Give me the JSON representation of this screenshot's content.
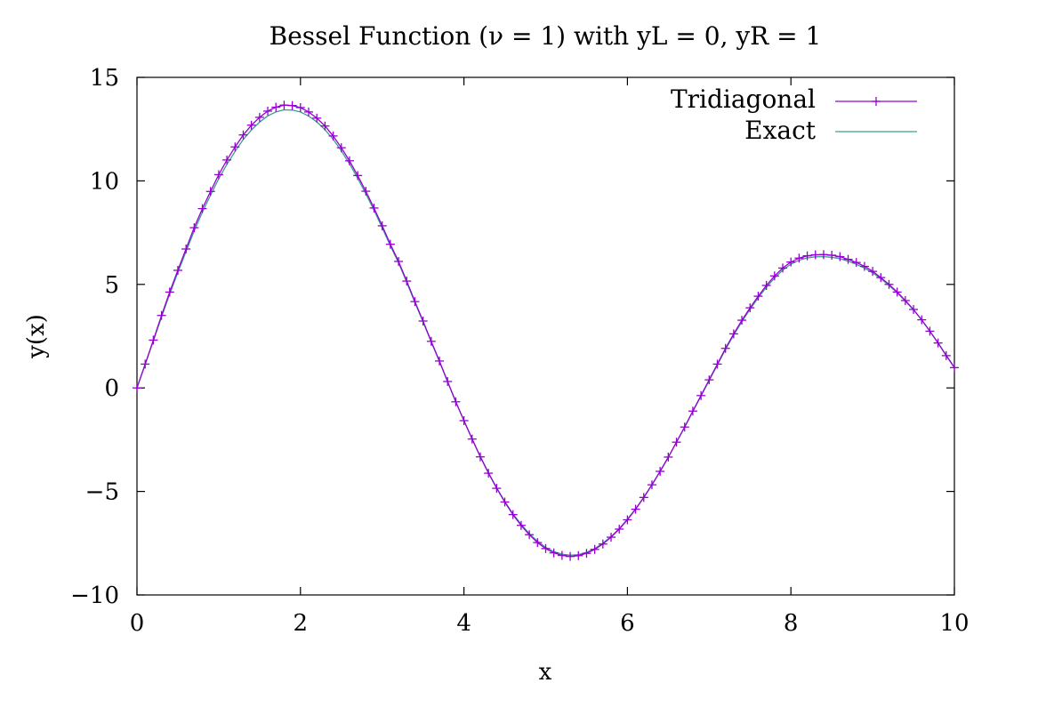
{
  "chart_data": {
    "type": "line",
    "title": "Bessel Function (ν = 1) with yL = 0, yR = 1",
    "xlabel": "x",
    "ylabel": "y(x)",
    "xlim": [
      0,
      10
    ],
    "ylim": [
      -10,
      15
    ],
    "xticks": [
      0,
      2,
      4,
      6,
      8,
      10
    ],
    "yticks": [
      -10,
      -5,
      0,
      5,
      10,
      15
    ],
    "xtick_labels": [
      "0",
      "2",
      "4",
      "6",
      "8",
      "10"
    ],
    "ytick_labels": [
      "−10",
      "−5",
      "0",
      "5",
      "10",
      "15"
    ],
    "grid": false,
    "legend_position": "top-right",
    "series": [
      {
        "name": "Tridiagonal",
        "color": "#9400d3",
        "marker": "plus",
        "x": [
          0,
          0.1,
          0.2,
          0.3,
          0.4,
          0.5,
          0.6,
          0.7,
          0.8,
          0.9,
          1.0,
          1.1,
          1.2,
          1.3,
          1.4,
          1.5,
          1.6,
          1.7,
          1.8,
          1.9,
          2.0,
          2.1,
          2.2,
          2.3,
          2.4,
          2.5,
          2.6,
          2.7,
          2.8,
          2.9,
          3.0,
          3.1,
          3.2,
          3.3,
          3.4,
          3.5,
          3.6,
          3.7,
          3.8,
          3.9,
          4.0,
          4.1,
          4.2,
          4.3,
          4.4,
          4.5,
          4.6,
          4.7,
          4.8,
          4.9,
          5.0,
          5.1,
          5.2,
          5.3,
          5.4,
          5.5,
          5.6,
          5.7,
          5.8,
          5.9,
          6.0,
          6.1,
          6.2,
          6.3,
          6.4,
          6.5,
          6.6,
          6.7,
          6.8,
          6.9,
          7.0,
          7.1,
          7.2,
          7.3,
          7.4,
          7.5,
          7.6,
          7.7,
          7.8,
          7.9,
          8.0,
          8.1,
          8.2,
          8.3,
          8.4,
          8.5,
          8.6,
          8.7,
          8.8,
          8.9,
          9.0,
          9.1,
          9.2,
          9.3,
          9.4,
          9.5,
          9.6,
          9.7,
          9.8,
          9.9,
          10.0
        ],
        "y": [
          0.0,
          1.15,
          2.31,
          3.5,
          4.63,
          5.68,
          6.71,
          7.74,
          8.66,
          9.49,
          10.3,
          11.01,
          11.64,
          12.22,
          12.69,
          13.07,
          13.37,
          13.56,
          13.66,
          13.64,
          13.54,
          13.33,
          13.03,
          12.65,
          12.17,
          11.6,
          10.97,
          10.26,
          9.5,
          8.69,
          7.83,
          6.94,
          6.11,
          5.16,
          4.17,
          3.23,
          2.25,
          1.3,
          0.31,
          -0.67,
          -1.58,
          -2.47,
          -3.33,
          -4.12,
          -4.85,
          -5.51,
          -6.12,
          -6.64,
          -7.09,
          -7.47,
          -7.76,
          -7.97,
          -8.09,
          -8.14,
          -8.1,
          -7.99,
          -7.8,
          -7.54,
          -7.21,
          -6.82,
          -6.37,
          -5.86,
          -5.29,
          -4.68,
          -4.03,
          -3.34,
          -2.62,
          -1.89,
          -1.12,
          -0.37,
          0.39,
          1.15,
          1.91,
          2.61,
          3.27,
          3.87,
          4.43,
          4.95,
          5.41,
          5.79,
          6.08,
          6.27,
          6.38,
          6.43,
          6.44,
          6.41,
          6.34,
          6.21,
          6.06,
          5.87,
          5.63,
          5.33,
          5.0,
          4.63,
          4.22,
          3.79,
          3.29,
          2.74,
          2.17,
          1.56,
          0.98
        ]
      },
      {
        "name": "Exact",
        "color": "#3a9f8c",
        "marker": "none",
        "x": [
          0,
          0.1,
          0.2,
          0.3,
          0.4,
          0.5,
          0.6,
          0.7,
          0.8,
          0.9,
          1.0,
          1.1,
          1.2,
          1.3,
          1.4,
          1.5,
          1.6,
          1.7,
          1.8,
          1.9,
          2.0,
          2.1,
          2.2,
          2.3,
          2.4,
          2.5,
          2.6,
          2.7,
          2.8,
          2.9,
          3.0,
          3.1,
          3.2,
          3.3,
          3.4,
          3.5,
          3.6,
          3.7,
          3.8,
          3.9,
          4.0,
          4.1,
          4.2,
          4.3,
          4.4,
          4.5,
          4.6,
          4.7,
          4.8,
          4.9,
          5.0,
          5.1,
          5.2,
          5.3,
          5.4,
          5.5,
          5.6,
          5.7,
          5.8,
          5.9,
          6.0,
          6.1,
          6.2,
          6.3,
          6.4,
          6.5,
          6.6,
          6.7,
          6.8,
          6.9,
          7.0,
          7.1,
          7.2,
          7.3,
          7.4,
          7.5,
          7.6,
          7.7,
          7.8,
          7.9,
          8.0,
          8.1,
          8.2,
          8.3,
          8.4,
          8.5,
          8.6,
          8.7,
          8.8,
          8.9,
          9.0,
          9.1,
          9.2,
          9.3,
          9.4,
          9.5,
          9.6,
          9.7,
          9.8,
          9.9,
          10.0
        ],
        "y": [
          0.0,
          1.13,
          2.27,
          3.42,
          4.53,
          5.57,
          6.58,
          7.58,
          8.49,
          9.31,
          10.1,
          10.8,
          11.42,
          12.0,
          12.46,
          12.84,
          13.14,
          13.33,
          13.43,
          13.42,
          13.33,
          13.13,
          12.85,
          12.47,
          12.01,
          11.45,
          10.83,
          10.13,
          9.38,
          8.58,
          7.73,
          6.86,
          6.04,
          5.1,
          4.12,
          3.19,
          2.22,
          1.28,
          0.3,
          -0.67,
          -1.58,
          -2.46,
          -3.31,
          -4.1,
          -4.83,
          -5.48,
          -6.08,
          -6.59,
          -7.04,
          -7.41,
          -7.7,
          -7.91,
          -8.03,
          -8.08,
          -8.05,
          -7.94,
          -7.76,
          -7.5,
          -7.18,
          -6.79,
          -6.34,
          -5.84,
          -5.28,
          -4.67,
          -4.02,
          -3.34,
          -2.63,
          -1.9,
          -1.14,
          -0.39,
          0.36,
          1.11,
          1.86,
          2.55,
          3.2,
          3.8,
          4.35,
          4.86,
          5.31,
          5.69,
          5.98,
          6.17,
          6.28,
          6.33,
          6.34,
          6.31,
          6.24,
          6.12,
          5.97,
          5.79,
          5.56,
          5.27,
          4.95,
          4.59,
          4.19,
          3.77,
          3.28,
          2.74,
          2.18,
          1.58,
          1.0
        ]
      }
    ]
  }
}
